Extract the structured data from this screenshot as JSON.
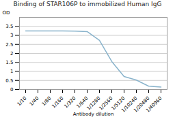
{
  "chart_data": {
    "type": "line",
    "title": "Binding of STAR106P to immobilized Human IgG",
    "xlabel": "Antibody dilution",
    "ylabel": "OD",
    "categories": [
      "1/10",
      "1/40",
      "1/80",
      "1/160",
      "1/320",
      "1/640",
      "1/1280",
      "1/2560",
      "1/5120",
      "1/10240",
      "1/20480",
      "1/40960"
    ],
    "values": [
      3.25,
      3.25,
      3.25,
      3.245,
      3.24,
      3.21,
      2.72,
      1.55,
      0.72,
      0.52,
      0.18,
      0.13
    ],
    "color": "#8ab4cc",
    "ylim": [
      0,
      4
    ],
    "yticks": [
      0,
      0.5,
      1,
      1.5,
      2,
      2.5,
      3,
      3.5
    ],
    "grid": true
  }
}
